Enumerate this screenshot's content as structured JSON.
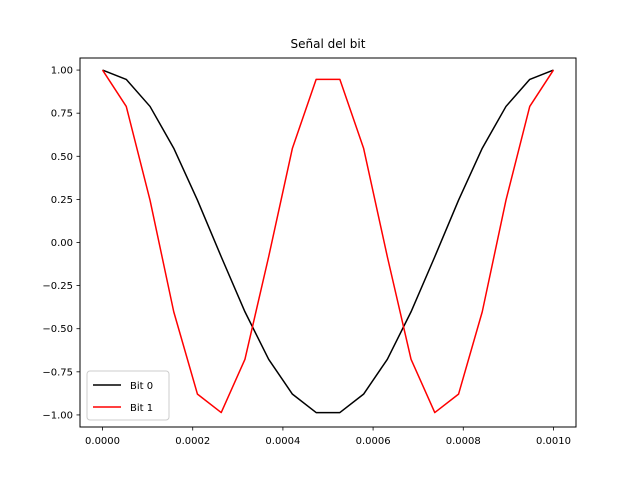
{
  "chart_data": {
    "type": "line",
    "title": "Señal del bit",
    "xlabel": "",
    "ylabel": "",
    "xlim": [
      -5e-05,
      0.00105
    ],
    "ylim": [
      -1.07,
      1.07
    ],
    "x_ticks": [
      "0.0000",
      "0.0002",
      "0.0004",
      "0.0006",
      "0.0008",
      "0.0010"
    ],
    "x_tick_values": [
      0.0,
      0.0002,
      0.0004,
      0.0006,
      0.0008,
      0.001
    ],
    "y_ticks": [
      "1.00",
      "0.75",
      "0.50",
      "0.25",
      "0.00",
      "−0.25",
      "−0.50",
      "−0.75",
      "−1.00"
    ],
    "y_tick_values": [
      1.0,
      0.75,
      0.5,
      0.25,
      0.0,
      -0.25,
      -0.5,
      -0.75,
      -1.0
    ],
    "grid": false,
    "legend_position": "lower-left",
    "x": [
      0.0,
      5.26e-05,
      0.0001053,
      0.0001579,
      0.0002105,
      0.0002632,
      0.0003158,
      0.0003684,
      0.0004211,
      0.0004737,
      0.0005263,
      0.0005789,
      0.0006316,
      0.0006842,
      0.0007368,
      0.0007895,
      0.0008421,
      0.0008947,
      0.0009474,
      0.001
    ],
    "series": [
      {
        "name": "Bit 0",
        "color": "#000000",
        "values": [
          1.0,
          0.9458,
          0.7891,
          0.5469,
          0.2455,
          -0.0826,
          -0.4017,
          -0.6773,
          -0.8795,
          -0.9864,
          -0.9864,
          -0.8795,
          -0.6773,
          -0.4017,
          -0.0826,
          0.2455,
          0.5469,
          0.7891,
          0.9458,
          1.0
        ]
      },
      {
        "name": "Bit 1",
        "color": "#ff0000",
        "values": [
          1.0,
          0.7891,
          0.2455,
          -0.4017,
          -0.8795,
          -0.9864,
          -0.6773,
          -0.0826,
          0.5469,
          0.9458,
          0.9458,
          0.5469,
          -0.0826,
          -0.6773,
          -0.9864,
          -0.8795,
          -0.4017,
          0.2455,
          0.7891,
          1.0
        ]
      }
    ]
  }
}
